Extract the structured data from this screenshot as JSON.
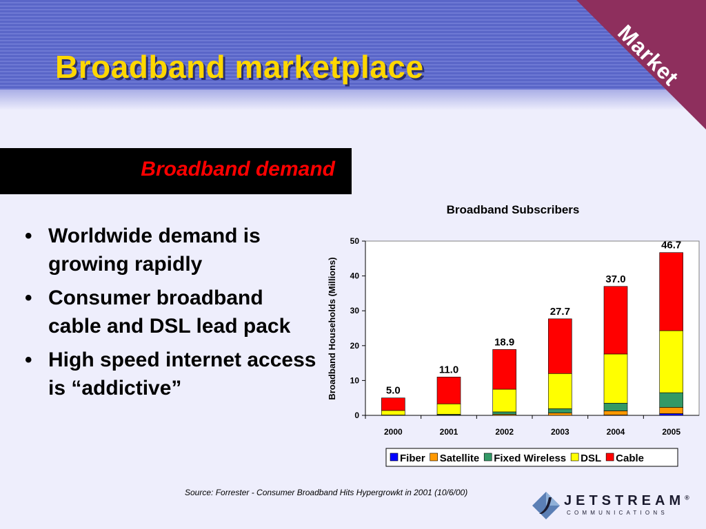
{
  "slide": {
    "title": "Broadband marketplace",
    "corner_label": "Market",
    "section_title": "Broadband demand",
    "bullets": [
      "Worldwide demand is growing rapidly",
      "Consumer broadband cable and DSL lead pack",
      "High speed internet access is “addictive”"
    ],
    "source": "Source: Forrester - Consumer Broadband Hits Hypergrowkt in 2001 (10/6/00)",
    "logo": {
      "name": "JETSTREAM",
      "registered": "®",
      "tagline": "COMMUNICATIONS"
    },
    "colors": {
      "header": "#5a66c8",
      "title": "#ffd700",
      "corner": "#8e2f5d",
      "banner_text": "#ff0000"
    }
  },
  "chart_data": {
    "type": "bar",
    "stacked": true,
    "title": "Broadband Subscribers",
    "ylabel": "Broadband Households (Millions)",
    "xlabel": "",
    "ylim": [
      0,
      50
    ],
    "yticks": [
      0,
      10,
      20,
      30,
      40,
      50
    ],
    "grid": false,
    "legend": "bottom",
    "categories": [
      "2000",
      "2001",
      "2002",
      "2003",
      "2004",
      "2005"
    ],
    "series": [
      {
        "name": "Fiber",
        "color": "#0000ff",
        "values": [
          0,
          0,
          0,
          0,
          0.1,
          0.5
        ]
      },
      {
        "name": "Satellite",
        "color": "#ff9900",
        "values": [
          0,
          0.1,
          0.3,
          0.7,
          1.2,
          1.8
        ]
      },
      {
        "name": "Fixed Wireless",
        "color": "#339966",
        "values": [
          0.1,
          0.2,
          0.7,
          1.2,
          2.2,
          4.2
        ]
      },
      {
        "name": "DSL",
        "color": "#ffff00",
        "values": [
          1.3,
          3.0,
          6.5,
          10.1,
          14.1,
          17.8
        ]
      },
      {
        "name": "Cable",
        "color": "#ff0000",
        "values": [
          3.6,
          7.7,
          11.4,
          15.7,
          19.4,
          22.4
        ]
      }
    ],
    "totals": [
      "5.0",
      "11.0",
      "18.9",
      "27.7",
      "37.0",
      "46.7"
    ]
  }
}
